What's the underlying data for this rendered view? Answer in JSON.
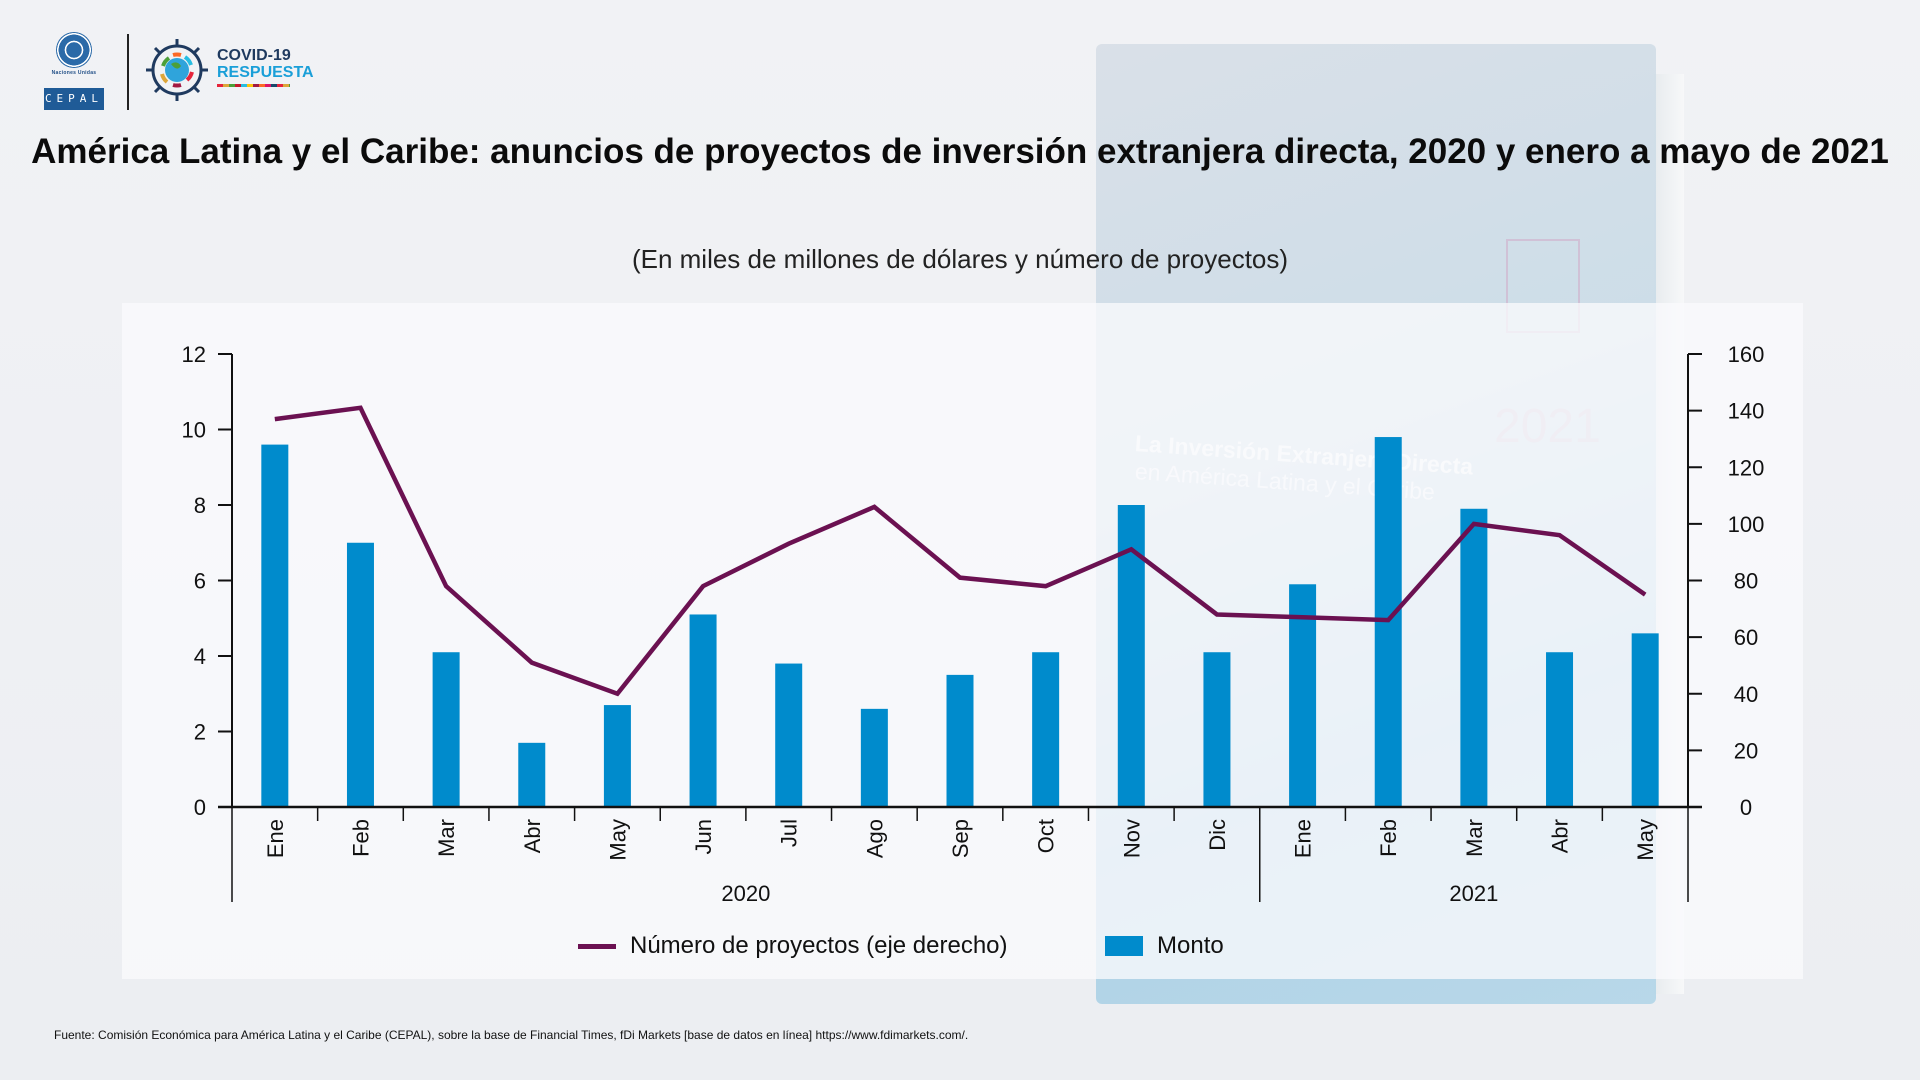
{
  "header": {
    "un_label": "Naciones Unidas",
    "cepal_label": "CEPAL",
    "covid_title": "COVID-19",
    "covid_subtitle": "RESPUESTA"
  },
  "background_book": {
    "year": "2021",
    "title": "La Inversión Extranjera Directa",
    "subtitle": "en América Latina y el Caribe"
  },
  "colors": {
    "bars": "#008bcc",
    "line": "#6b1151",
    "axis": "#111111"
  },
  "chart_data": {
    "type": "bar",
    "title": "América Latina y el Caribe: anuncios de proyectos de inversión extranjera directa, 2020 y enero a mayo de 2021",
    "subtitle": "(En miles de millones de dólares y número de proyectos)",
    "categories": [
      "Ene",
      "Feb",
      "Mar",
      "Abr",
      "May",
      "Jun",
      "Jul",
      "Ago",
      "Sep",
      "Oct",
      "Nov",
      "Dic",
      "Ene",
      "Feb",
      "Mar",
      "Abr",
      "May"
    ],
    "groups": [
      {
        "label": "2020",
        "count": 12
      },
      {
        "label": "2021",
        "count": 5
      }
    ],
    "series": [
      {
        "name": "Monto",
        "type": "bar",
        "axis": "left",
        "values": [
          9.6,
          7.0,
          4.1,
          1.7,
          2.7,
          5.1,
          3.8,
          2.6,
          3.5,
          4.1,
          8.0,
          4.1,
          5.9,
          9.8,
          7.9,
          4.1,
          4.6
        ]
      },
      {
        "name": "Número de proyectos (eje derecho)",
        "type": "line",
        "axis": "right",
        "values": [
          137,
          141,
          78,
          51,
          40,
          78,
          93,
          106,
          81,
          78,
          91,
          68,
          67,
          66,
          100,
          96,
          75
        ]
      }
    ],
    "ylim_left": [
      0,
      12
    ],
    "yticks_left": [
      0,
      2,
      4,
      6,
      8,
      10,
      12
    ],
    "ylim_right": [
      0,
      160
    ],
    "yticks_right": [
      0,
      20,
      40,
      60,
      80,
      100,
      120,
      140,
      160
    ],
    "xlabel": "",
    "ylabel": "",
    "grid": false,
    "legend_position": "bottom"
  },
  "legend": {
    "line_label": "Número de proyectos (eje derecho)",
    "bar_label": "Monto"
  },
  "source": "Fuente: Comisión Económica para América Latina y el Caribe (CEPAL), sobre la base de Financial Times, fDi Markets [base de datos en línea] https://www.fdimarkets.com/."
}
